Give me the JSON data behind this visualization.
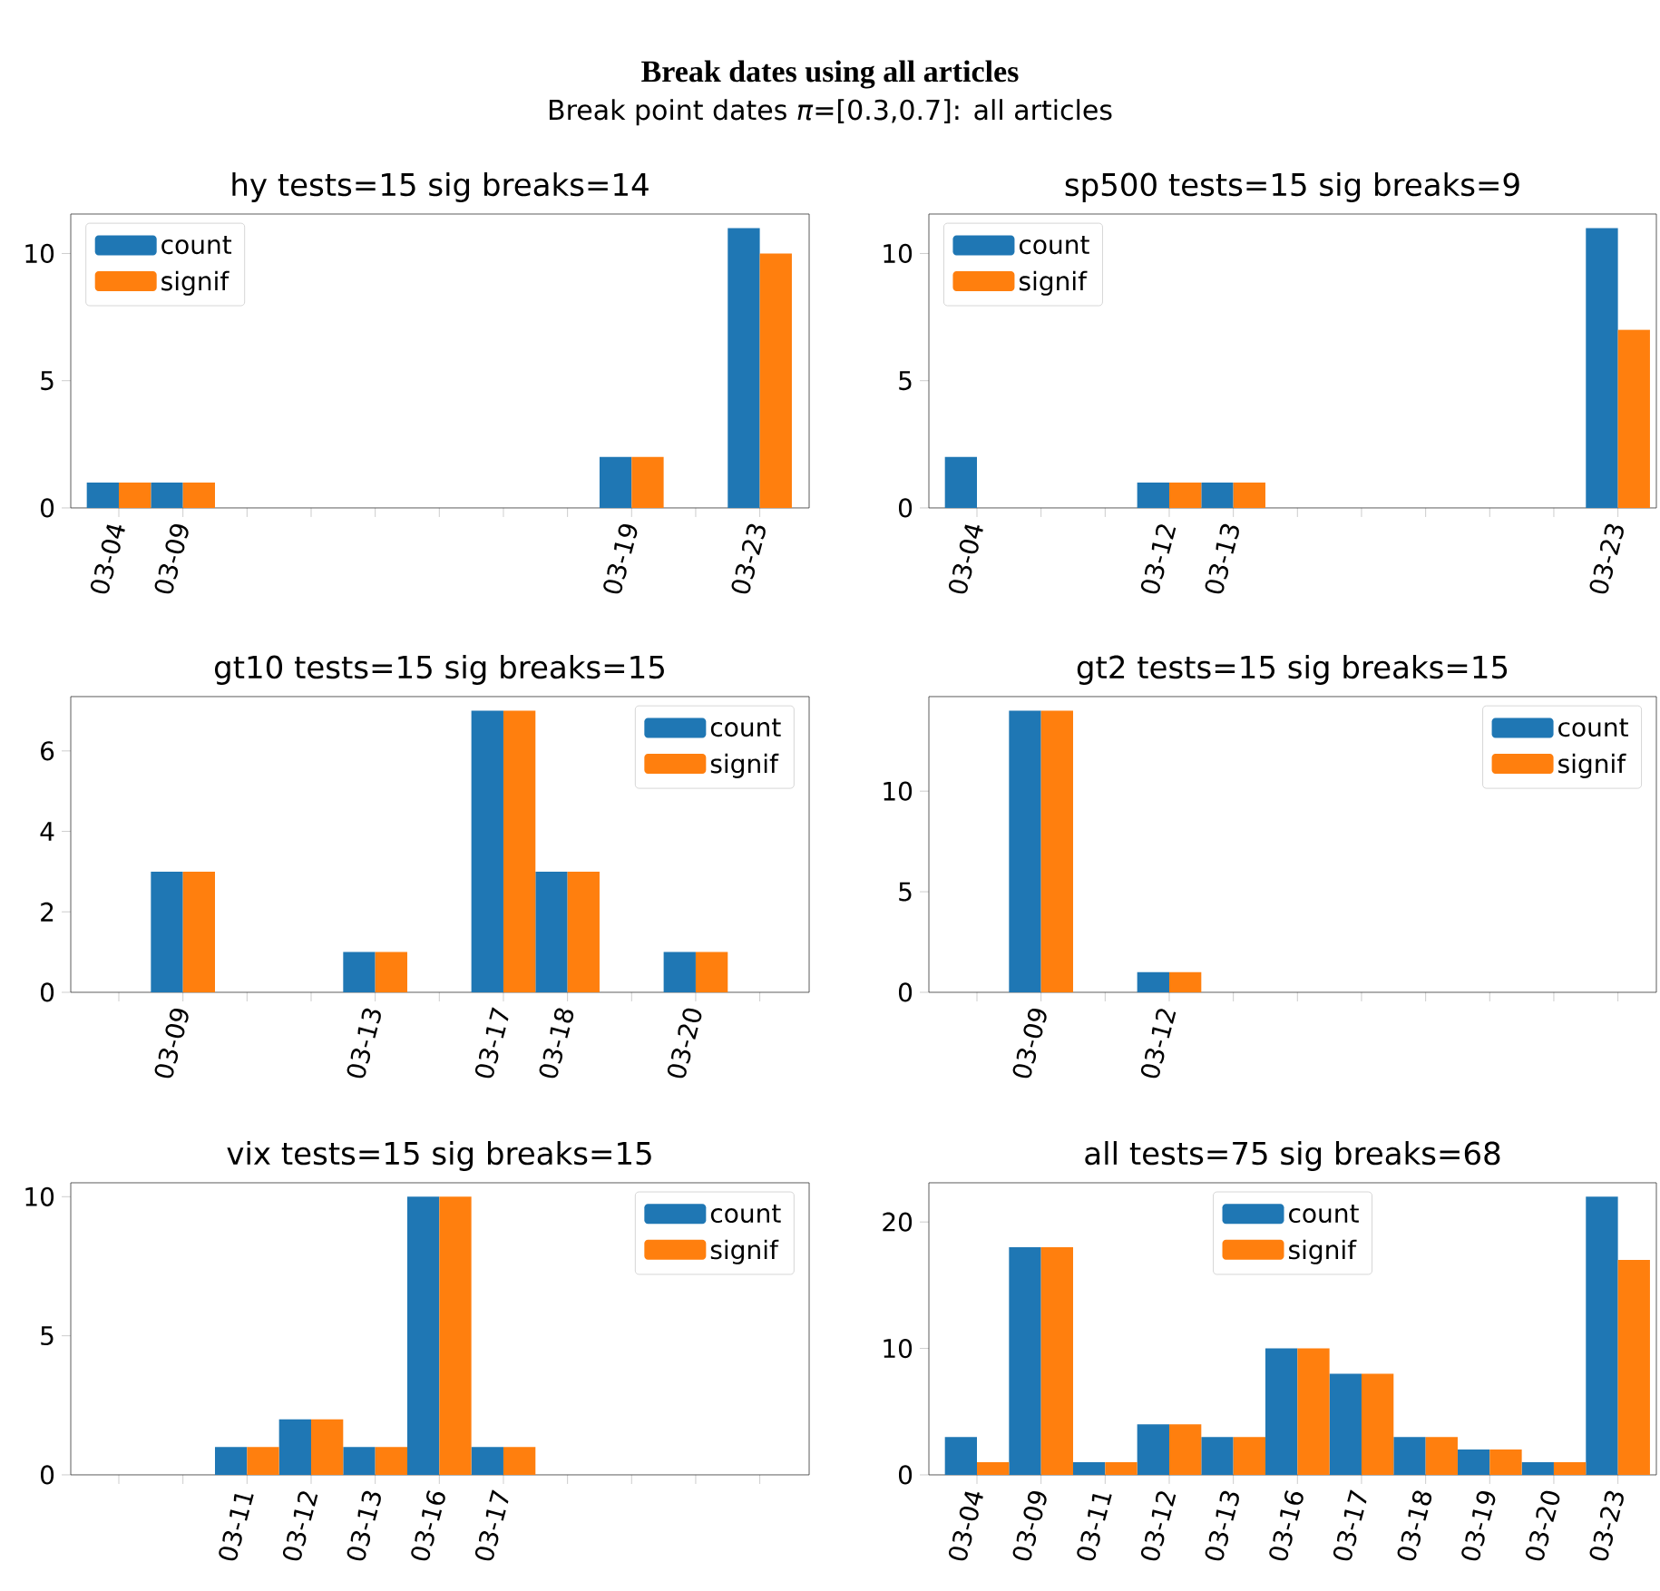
{
  "chart_data": [
    {
      "type": "other",
      "title": "Break dates using all articles",
      "subtitle": "Break point dates *π*=[0.3,0.7]: all articles"
    },
    {
      "type": "bar",
      "title": "hy  tests=15  sig breaks=14",
      "categories": [
        "03-04",
        "03-09",
        null,
        null,
        null,
        null,
        null,
        null,
        "03-19",
        null,
        "03-23"
      ],
      "series": [
        {
          "name": "count",
          "color": "#1f77b4",
          "values": [
            1,
            1,
            0,
            0,
            0,
            0,
            0,
            0,
            2,
            0,
            11
          ]
        },
        {
          "name": "signif",
          "color": "#ff7f0e",
          "values": [
            1,
            1,
            0,
            0,
            0,
            0,
            0,
            0,
            2,
            0,
            10
          ]
        }
      ],
      "ylim": [
        0,
        11.55
      ],
      "yticks": [
        0,
        5,
        10
      ],
      "legend": "top left"
    },
    {
      "type": "bar",
      "title": "sp500  tests=15  sig breaks=9",
      "categories": [
        "03-04",
        null,
        null,
        "03-12",
        "03-13",
        null,
        null,
        null,
        null,
        null,
        "03-23"
      ],
      "series": [
        {
          "name": "count",
          "color": "#1f77b4",
          "values": [
            2,
            0,
            0,
            1,
            1,
            0,
            0,
            0,
            0,
            0,
            11
          ]
        },
        {
          "name": "signif",
          "color": "#ff7f0e",
          "values": [
            0,
            0,
            0,
            1,
            1,
            0,
            0,
            0,
            0,
            0,
            7
          ]
        }
      ],
      "ylim": [
        0,
        11.55
      ],
      "yticks": [
        0,
        5,
        10
      ],
      "legend": "top left"
    },
    {
      "type": "bar",
      "title": "gt10  tests=15  sig breaks=15",
      "categories": [
        null,
        "03-09",
        null,
        null,
        "03-13",
        null,
        "03-17",
        "03-18",
        null,
        "03-20",
        null
      ],
      "series": [
        {
          "name": "count",
          "color": "#1f77b4",
          "values": [
            0,
            3,
            0,
            0,
            1,
            0,
            7,
            3,
            0,
            1,
            0
          ]
        },
        {
          "name": "signif",
          "color": "#ff7f0e",
          "values": [
            0,
            3,
            0,
            0,
            1,
            0,
            7,
            3,
            0,
            1,
            0
          ]
        }
      ],
      "ylim": [
        0,
        7.35
      ],
      "yticks": [
        0,
        2,
        4,
        6
      ],
      "legend": "top right"
    },
    {
      "type": "bar",
      "title": "gt2  tests=15  sig breaks=15",
      "categories": [
        null,
        "03-09",
        null,
        "03-12",
        null,
        null,
        null,
        null,
        null,
        null,
        null
      ],
      "series": [
        {
          "name": "count",
          "color": "#1f77b4",
          "values": [
            0,
            14,
            0,
            1,
            0,
            0,
            0,
            0,
            0,
            0,
            0
          ]
        },
        {
          "name": "signif",
          "color": "#ff7f0e",
          "values": [
            0,
            14,
            0,
            1,
            0,
            0,
            0,
            0,
            0,
            0,
            0
          ]
        }
      ],
      "ylim": [
        0,
        14.7
      ],
      "yticks": [
        0,
        5,
        10
      ],
      "legend": "top right"
    },
    {
      "type": "bar",
      "title": "vix  tests=15  sig breaks=15",
      "categories": [
        null,
        null,
        "03-11",
        "03-12",
        "03-13",
        "03-16",
        "03-17",
        null,
        null,
        null,
        null
      ],
      "series": [
        {
          "name": "count",
          "color": "#1f77b4",
          "values": [
            0,
            0,
            1,
            2,
            1,
            10,
            1,
            0,
            0,
            0,
            0
          ]
        },
        {
          "name": "signif",
          "color": "#ff7f0e",
          "values": [
            0,
            0,
            1,
            2,
            1,
            10,
            1,
            0,
            0,
            0,
            0
          ]
        }
      ],
      "ylim": [
        0,
        10.5
      ],
      "yticks": [
        0,
        5,
        10
      ],
      "legend": "top right"
    },
    {
      "type": "bar",
      "title": "all  tests=75  sig breaks=68",
      "categories": [
        "03-04",
        "03-09",
        "03-11",
        "03-12",
        "03-13",
        "03-16",
        "03-17",
        "03-18",
        "03-19",
        "03-20",
        "03-23"
      ],
      "series": [
        {
          "name": "count",
          "color": "#1f77b4",
          "values": [
            3,
            18,
            1,
            4,
            3,
            10,
            8,
            3,
            2,
            1,
            22
          ]
        },
        {
          "name": "signif",
          "color": "#ff7f0e",
          "values": [
            1,
            18,
            1,
            4,
            3,
            10,
            8,
            3,
            2,
            1,
            17
          ]
        }
      ],
      "ylim": [
        0,
        23.1
      ],
      "yticks": [
        0,
        10,
        20
      ],
      "legend": "top"
    }
  ]
}
